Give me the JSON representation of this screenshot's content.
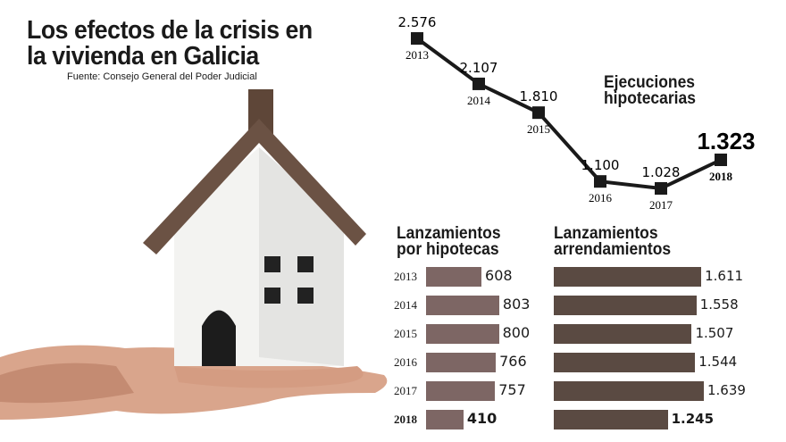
{
  "header": {
    "title_line1": "Los efectos de la crisis en",
    "title_line2": "la vivienda en Galicia",
    "source": "Fuente: Consejo General del Poder Judicial"
  },
  "colors": {
    "line": "#1a1a1a",
    "bar_hipotecas": "#7d6664",
    "bar_arrendamientos": "#5a4a42"
  },
  "chart_data": [
    {
      "type": "line",
      "title": "Ejecuciones hipotecarias",
      "title_line1": "Ejecuciones",
      "title_line2": "hipotecarias",
      "categories": [
        "2013",
        "2014",
        "2015",
        "2016",
        "2017",
        "2018"
      ],
      "values": [
        2576,
        2107,
        1810,
        1100,
        1028,
        1323
      ],
      "labels": [
        "2.576",
        "2.107",
        "1.810",
        "1.100",
        "1.028",
        "1.323"
      ]
    },
    {
      "type": "bar",
      "orientation": "horizontal",
      "title_line1": "Lanzamientos",
      "title_line2": "por hipotecas",
      "categories": [
        "2013",
        "2014",
        "2015",
        "2016",
        "2017",
        "2018"
      ],
      "values": [
        608,
        803,
        800,
        766,
        757,
        410
      ],
      "labels": [
        "608",
        "803",
        "800",
        "766",
        "757",
        "410"
      ]
    },
    {
      "type": "bar",
      "orientation": "horizontal",
      "title_line1": "Lanzamientos",
      "title_line2": "arrendamientos",
      "categories": [
        "2013",
        "2014",
        "2015",
        "2016",
        "2017",
        "2018"
      ],
      "values": [
        1611,
        1558,
        1507,
        1544,
        1639,
        1245
      ],
      "labels": [
        "1.611",
        "1.558",
        "1.507",
        "1.544",
        "1.639",
        "1.245"
      ]
    }
  ]
}
